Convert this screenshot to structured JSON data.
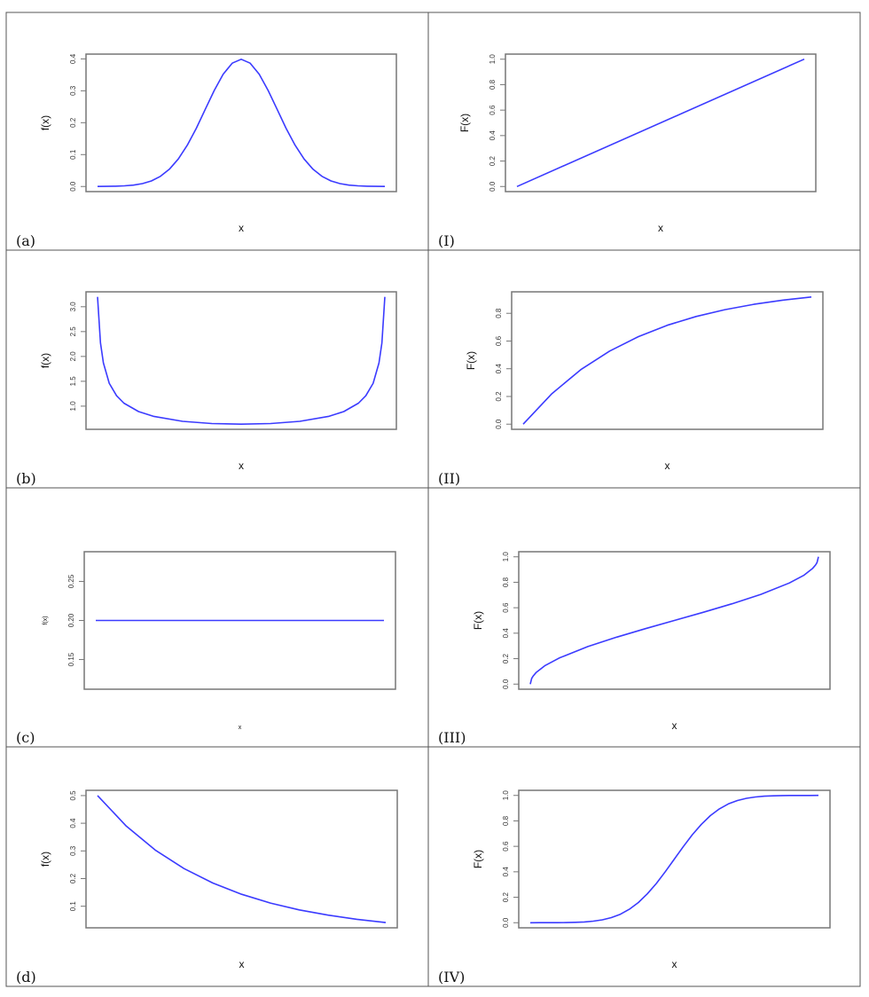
{
  "chart_data": [
    {
      "panel_label": "(a)",
      "type": "line",
      "ylabel": "f(x)",
      "xlabel": "x",
      "ytick_labels": [
        "0.0",
        "0.1",
        "0.2",
        "0.3",
        "0.4"
      ],
      "ylim": [
        -0.016,
        0.415
      ],
      "color": "#3b3bff",
      "x": [
        -4,
        -3.75,
        -3.5,
        -3.25,
        -3,
        -2.75,
        -2.5,
        -2.25,
        -2,
        -1.75,
        -1.5,
        -1.25,
        -1,
        -0.75,
        -0.5,
        -0.25,
        0,
        0.25,
        0.5,
        0.75,
        1,
        1.25,
        1.5,
        1.75,
        2,
        2.25,
        2.5,
        2.75,
        3,
        3.25,
        3.5,
        3.75,
        4
      ],
      "y": [
        0.0001,
        0.0004,
        0.0009,
        0.002,
        0.0044,
        0.0091,
        0.0175,
        0.0317,
        0.054,
        0.0863,
        0.1295,
        0.1826,
        0.242,
        0.3011,
        0.3521,
        0.3867,
        0.3989,
        0.3867,
        0.3521,
        0.3011,
        0.242,
        0.1826,
        0.1295,
        0.0863,
        0.054,
        0.0317,
        0.0175,
        0.0091,
        0.0044,
        0.002,
        0.0009,
        0.0004,
        0.0001
      ]
    },
    {
      "panel_label": "(I)",
      "type": "line",
      "ylabel": "F(x)",
      "xlabel": "x",
      "ytick_labels": [
        "0.0",
        "0.2",
        "0.4",
        "0.6",
        "0.8",
        "1.0"
      ],
      "ylim": [
        -0.04,
        1.04
      ],
      "color": "#3b3bff",
      "x": [
        0,
        1
      ],
      "y": [
        0,
        1
      ]
    },
    {
      "panel_label": "(b)",
      "type": "line",
      "ylabel": "f(x)",
      "xlabel": "x",
      "ytick_labels": [
        "1.0",
        "1.5",
        "2.0",
        "2.5",
        "3.0"
      ],
      "ylim": [
        0.534,
        3.3
      ],
      "color": "#3b3bff",
      "x": [
        0.01,
        0.02,
        0.03,
        0.05,
        0.075,
        0.1,
        0.15,
        0.2,
        0.3,
        0.4,
        0.5,
        0.6,
        0.7,
        0.8,
        0.85,
        0.9,
        0.925,
        0.95,
        0.97,
        0.98,
        0.99
      ],
      "y": [
        3.199,
        2.274,
        1.871,
        1.46,
        1.209,
        1.061,
        0.891,
        0.796,
        0.695,
        0.65,
        0.637,
        0.65,
        0.695,
        0.796,
        0.891,
        1.061,
        1.209,
        1.46,
        1.871,
        2.274,
        3.199
      ]
    },
    {
      "panel_label": "(II)",
      "type": "line",
      "ylabel": "F(x)",
      "xlabel": "x",
      "ytick_labels": [
        "0.0",
        "0.2",
        "0.4",
        "0.6",
        "0.8"
      ],
      "ylim": [
        -0.037,
        0.955
      ],
      "color": "#3b3bff",
      "x": [
        0,
        0.25,
        0.5,
        0.75,
        1,
        1.25,
        1.5,
        1.75,
        2,
        2.25,
        2.5
      ],
      "y": [
        0,
        0.2212,
        0.3935,
        0.5276,
        0.6321,
        0.7135,
        0.7769,
        0.8262,
        0.8647,
        0.8946,
        0.9179
      ]
    },
    {
      "panel_label": "(c)",
      "type": "line",
      "ylabel": "f(x)",
      "xlabel": "x",
      "ytick_labels": [
        "0.15",
        "0.20",
        "0.25"
      ],
      "ylim": [
        0.112,
        0.288
      ],
      "color": "#3b3bff",
      "x": [
        0,
        5
      ],
      "y": [
        0.2,
        0.2
      ]
    },
    {
      "panel_label": "(III)",
      "type": "line",
      "ylabel": "F(x)",
      "xlabel": "x",
      "ytick_labels": [
        "0.0",
        "0.2",
        "0.4",
        "0.6",
        "0.8",
        "1.0"
      ],
      "ylim": [
        -0.04,
        1.04
      ],
      "color": "#3b3bff",
      "x": [
        0,
        0.005,
        0.01,
        0.02,
        0.05,
        0.1,
        0.2,
        0.3,
        0.4,
        0.5,
        0.6,
        0.7,
        0.8,
        0.9,
        0.95,
        0.98,
        0.99,
        0.995,
        1
      ],
      "y": [
        0,
        0.0451,
        0.0638,
        0.0903,
        0.1436,
        0.2048,
        0.2952,
        0.369,
        0.4359,
        0.5,
        0.5641,
        0.631,
        0.7048,
        0.7952,
        0.8564,
        0.9097,
        0.9362,
        0.9549,
        1
      ]
    },
    {
      "panel_label": "(d)",
      "type": "line",
      "ylabel": "f(x)",
      "xlabel": "x",
      "ytick_labels": [
        "0.1",
        "0.2",
        "0.3",
        "0.4",
        "0.5"
      ],
      "ylim": [
        0.022,
        0.519
      ],
      "color": "#3b3bff",
      "x": [
        0,
        0.5,
        1,
        1.5,
        2,
        2.5,
        3,
        3.5,
        4,
        4.5,
        5
      ],
      "y": [
        0.5,
        0.3894,
        0.3033,
        0.2362,
        0.1839,
        0.1433,
        0.1116,
        0.0869,
        0.0677,
        0.0527,
        0.041
      ]
    },
    {
      "panel_label": "(IV)",
      "type": "line",
      "ylabel": "F(x)",
      "xlabel": "x",
      "ytick_labels": [
        "0.0",
        "0.2",
        "0.4",
        "0.6",
        "0.8",
        "1.0"
      ],
      "ylim": [
        -0.04,
        1.04
      ],
      "color": "#3b3bff",
      "x": [
        -4,
        -3.75,
        -3.5,
        -3.25,
        -3,
        -2.75,
        -2.5,
        -2.25,
        -2,
        -1.75,
        -1.5,
        -1.25,
        -1,
        -0.75,
        -0.5,
        -0.25,
        0,
        0.25,
        0.5,
        0.75,
        1,
        1.25,
        1.5,
        1.75,
        2,
        2.25,
        2.5,
        2.75,
        3,
        3.25,
        3.5,
        3.75,
        4
      ],
      "y": [
        0,
        0.0001,
        0.0002,
        0.0006,
        0.0013,
        0.003,
        0.0062,
        0.0122,
        0.0228,
        0.0401,
        0.0668,
        0.1056,
        0.1587,
        0.2266,
        0.3085,
        0.4013,
        0.5,
        0.5987,
        0.6915,
        0.7734,
        0.8413,
        0.8944,
        0.9332,
        0.9599,
        0.9772,
        0.9878,
        0.9938,
        0.997,
        0.9987,
        0.9994,
        0.9998,
        0.9999,
        1
      ]
    }
  ]
}
